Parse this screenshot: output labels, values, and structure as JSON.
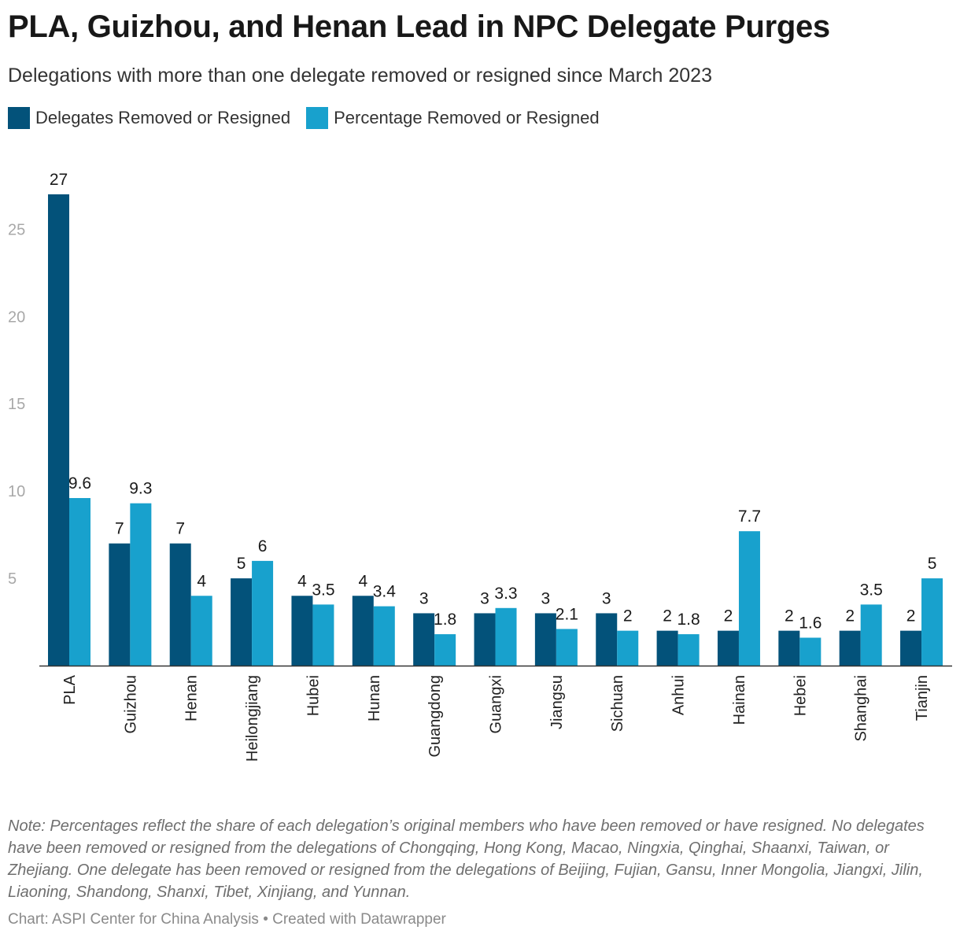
{
  "title": "PLA, Guizhou, and Henan Lead in NPC Delegate Purges",
  "subtitle": "Delegations with more than one delegate removed or resigned since March 2023",
  "note": "Note: Percentages reflect the share of each delegation’s original members who have been removed or have resigned. No delegates have been removed or resigned from the delegations of Chongqing, Hong Kong, Macao, Ningxia, Qinghai, Shaanxi, Taiwan, or Zhejiang. One delegate has been removed or resigned from the delegations of Beijing, Fujian, Gansu, Inner Mongolia, Jiangxi, Jilin, Liaoning, Shandong, Shanxi, Tibet, Xinjiang, and Yunnan.",
  "credit": "Chart: ASPI Center for China Analysis • Created with Datawrapper",
  "colors": {
    "series1": "#03527a",
    "series2": "#18a1cd",
    "tick_text": "#a8a8a8",
    "baseline": "#333333"
  },
  "chart_data": {
    "type": "bar",
    "categories": [
      "PLA",
      "Guizhou",
      "Henan",
      "Heilongjiang",
      "Hubei",
      "Hunan",
      "Guangdong",
      "Guangxi",
      "Jiangsu",
      "Sichuan",
      "Anhui",
      "Hainan",
      "Hebei",
      "Shanghai",
      "Tianjin"
    ],
    "series": [
      {
        "name": "Delegates Removed or Resigned",
        "values": [
          27,
          7,
          7,
          5,
          4,
          4,
          3,
          3,
          3,
          3,
          2,
          2,
          2,
          2,
          2
        ]
      },
      {
        "name": "Percentage Removed or Resigned",
        "values": [
          9.6,
          9.3,
          4,
          6,
          3.5,
          3.4,
          1.8,
          3.3,
          2.1,
          2,
          1.8,
          7.7,
          1.6,
          3.5,
          5
        ]
      }
    ],
    "y_ticks": [
      5,
      10,
      15,
      20,
      25
    ],
    "ylim": [
      0,
      27
    ],
    "grid": false,
    "legend_position": "top-left",
    "xlabel": "",
    "ylabel": ""
  }
}
